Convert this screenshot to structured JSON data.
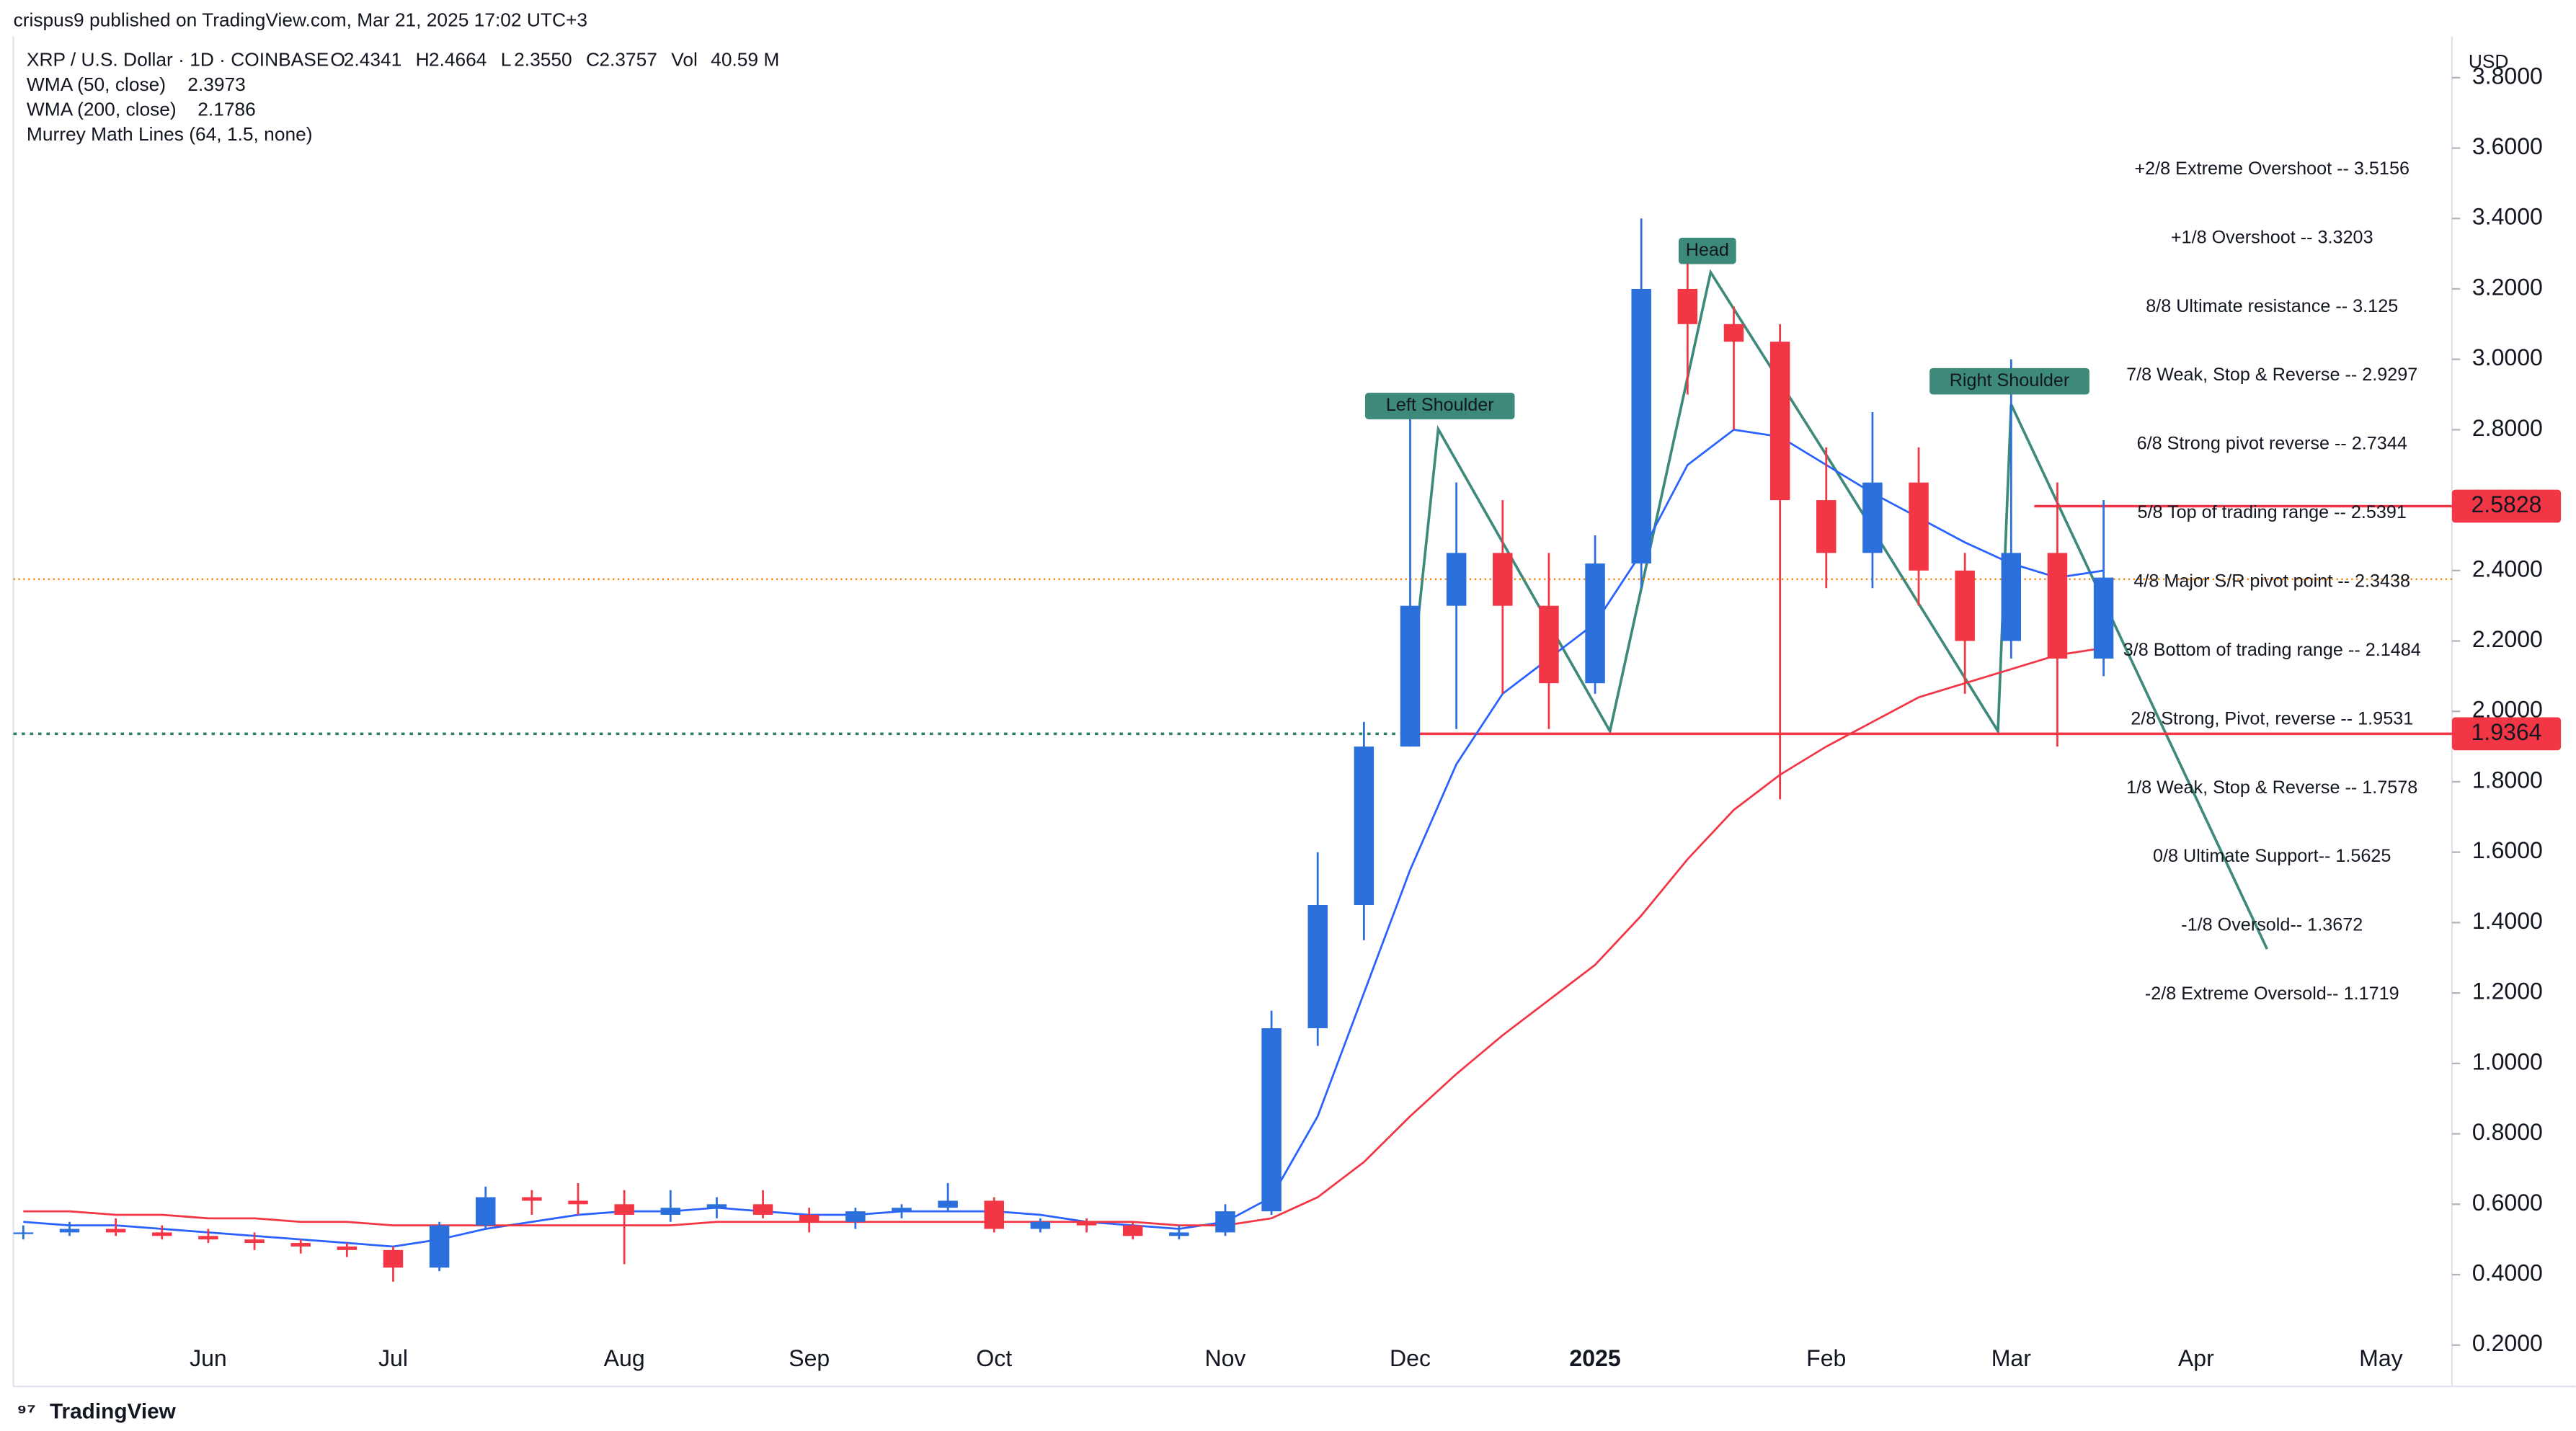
{
  "header": {
    "publisher": "crispus9 published on TradingView.com, Mar 21, 2025 17:02 UTC+3",
    "symbol": "XRP / U.S. Dollar · 1D · COINBASE",
    "ohlc": [
      {
        "key": "O",
        "value": "2.4341"
      },
      {
        "key": "H",
        "value": "2.4664"
      },
      {
        "key": "L",
        "value": "2.3550"
      },
      {
        "key": "C",
        "value": "2.3757"
      },
      {
        "key": "Vol",
        "value": "40.59 M"
      }
    ],
    "indicators": [
      {
        "name": "WMA (50, close)",
        "value": "2.3973",
        "color": "#2962ff"
      },
      {
        "name": "WMA (200, close)",
        "value": "2.1786",
        "color": "#f23645"
      },
      {
        "name": "Murrey Math Lines (64, 1.5, none)"
      }
    ]
  },
  "footer": {
    "brand": "TradingView"
  },
  "chart_data": {
    "type": "candlestick",
    "currency": "USD",
    "categories": [
      null,
      null,
      null,
      null,
      "Jun",
      null,
      null,
      null,
      "Jul",
      null,
      null,
      null,
      null,
      "Aug",
      null,
      null,
      null,
      "Sep",
      null,
      null,
      null,
      "Oct",
      null,
      null,
      null,
      null,
      "Nov",
      null,
      null,
      null,
      "Dec",
      null,
      null,
      null,
      "2025",
      null,
      null,
      null,
      null,
      "Feb",
      null,
      null,
      null,
      "Mar",
      null,
      null,
      null,
      "Apr",
      null,
      null,
      null,
      "May"
    ],
    "open": [
      0.52,
      0.52,
      0.53,
      0.52,
      0.51,
      0.5,
      0.49,
      0.48,
      0.47,
      0.42,
      0.54,
      0.62,
      0.61,
      0.6,
      0.57,
      0.59,
      0.6,
      0.57,
      0.55,
      0.58,
      0.59,
      0.61,
      0.53,
      0.55,
      0.54,
      0.51,
      0.52,
      0.58,
      1.1,
      1.45,
      1.9,
      2.3,
      2.45,
      2.3,
      2.08,
      2.42,
      3.2,
      3.1,
      3.05,
      2.6,
      2.45,
      2.65,
      2.4,
      2.2,
      2.45,
      2.15,
      null,
      null,
      null,
      null,
      null,
      null
    ],
    "high": [
      0.54,
      0.55,
      0.56,
      0.54,
      0.53,
      0.52,
      0.5,
      0.49,
      0.48,
      0.55,
      0.65,
      0.64,
      0.66,
      0.64,
      0.64,
      0.62,
      0.64,
      0.59,
      0.59,
      0.6,
      0.66,
      0.62,
      0.56,
      0.56,
      0.55,
      0.54,
      0.6,
      1.15,
      1.6,
      1.97,
      2.9,
      2.65,
      2.6,
      2.45,
      2.5,
      3.4,
      3.3,
      3.15,
      3.1,
      2.75,
      2.85,
      2.75,
      2.45,
      3.0,
      2.65,
      2.6,
      null,
      null,
      null,
      null,
      null,
      null
    ],
    "low": [
      0.5,
      0.51,
      0.51,
      0.5,
      0.49,
      0.47,
      0.46,
      0.45,
      0.38,
      0.41,
      0.53,
      0.57,
      0.57,
      0.43,
      0.55,
      0.56,
      0.56,
      0.52,
      0.53,
      0.56,
      0.58,
      0.52,
      0.52,
      0.52,
      0.5,
      0.5,
      0.51,
      0.57,
      1.05,
      1.35,
      1.9,
      1.95,
      2.05,
      1.95,
      2.05,
      2.35,
      2.9,
      2.8,
      1.75,
      2.35,
      2.35,
      2.3,
      2.05,
      2.15,
      1.9,
      2.1,
      null,
      null,
      null,
      null,
      null,
      null
    ],
    "close": [
      0.52,
      0.53,
      0.52,
      0.51,
      0.5,
      0.49,
      0.48,
      0.47,
      0.42,
      0.54,
      0.62,
      0.61,
      0.6,
      0.57,
      0.59,
      0.6,
      0.57,
      0.55,
      0.58,
      0.59,
      0.61,
      0.53,
      0.55,
      0.54,
      0.51,
      0.52,
      0.58,
      1.1,
      1.45,
      1.9,
      2.3,
      2.45,
      2.3,
      2.08,
      2.42,
      3.2,
      3.1,
      3.05,
      2.6,
      2.45,
      2.65,
      2.4,
      2.2,
      2.45,
      2.15,
      2.38,
      null,
      null,
      null,
      null,
      null,
      null
    ],
    "up_color": "#2a6fdb",
    "down_color": "#f23645",
    "series": [
      {
        "name": "WMA (50, close)",
        "color": "#2962ff",
        "values": [
          0.55,
          0.54,
          0.54,
          0.53,
          0.52,
          0.51,
          0.5,
          0.49,
          0.48,
          0.5,
          0.53,
          0.55,
          0.57,
          0.58,
          0.58,
          0.59,
          0.58,
          0.57,
          0.57,
          0.58,
          0.58,
          0.58,
          0.57,
          0.55,
          0.54,
          0.53,
          0.55,
          0.62,
          0.85,
          1.2,
          1.55,
          1.85,
          2.05,
          2.15,
          2.25,
          2.45,
          2.7,
          2.8,
          2.78,
          2.7,
          2.62,
          2.55,
          2.48,
          2.42,
          2.38,
          2.4,
          null,
          null,
          null,
          null,
          null,
          null
        ]
      },
      {
        "name": "WMA (200, close)",
        "color": "#f23645",
        "values": [
          0.58,
          0.58,
          0.57,
          0.57,
          0.56,
          0.56,
          0.55,
          0.55,
          0.54,
          0.54,
          0.54,
          0.54,
          0.54,
          0.54,
          0.54,
          0.55,
          0.55,
          0.55,
          0.55,
          0.55,
          0.55,
          0.55,
          0.55,
          0.55,
          0.55,
          0.54,
          0.54,
          0.56,
          0.62,
          0.72,
          0.85,
          0.97,
          1.08,
          1.18,
          1.28,
          1.42,
          1.58,
          1.72,
          1.82,
          1.9,
          1.97,
          2.04,
          2.08,
          2.12,
          2.16,
          2.18,
          null,
          null,
          null,
          null,
          null,
          null
        ]
      }
    ],
    "murrey": [
      {
        "label": "+2/8 Extreme Overshoot --  3.5156",
        "value": 3.5156,
        "color": "#f23645"
      },
      {
        "label": "+1/8 Overshoot --  3.3203",
        "value": 3.3203,
        "color": "#f23645"
      },
      {
        "label": "8/8 Ultimate resistance --  3.125",
        "value": 3.125,
        "color": "#00bcd4"
      },
      {
        "label": "7/8 Weak, Stop & Reverse --  2.9297",
        "value": 2.9297,
        "color": "#ff9800"
      },
      {
        "label": "6/8 Strong pivot reverse --  2.7344",
        "value": 2.7344,
        "color": "#e040fb"
      },
      {
        "label": "5/8 Top of trading range --  2.5391",
        "value": 2.5391,
        "color": "#4caf50"
      },
      {
        "label": "4/8 Major S/R pivot point --  2.3438",
        "value": 2.3438,
        "color": "#00bcd4"
      },
      {
        "label": "3/8 Bottom of trading range --  2.1484",
        "value": 2.1484,
        "color": "#4caf50"
      },
      {
        "label": "2/8 Strong, Pivot, reverse --  1.9531",
        "value": 1.9531,
        "color": "#e040fb"
      },
      {
        "label": "1/8 Weak, Stop & Reverse --  1.7578",
        "value": 1.7578,
        "color": "#ff9800"
      },
      {
        "label": "0/8 Ultimate Support--  1.5625",
        "value": 1.5625,
        "color": "#00bcd4"
      },
      {
        "label": "-1/8 Oversold--  1.3672",
        "value": 1.3672,
        "color": "#4caf50"
      },
      {
        "label": "-2/8 Extreme Oversold--  1.1719",
        "value": 1.1719,
        "color": "#4caf50"
      }
    ],
    "price_markers": [
      {
        "value": 2.5828,
        "label": "2.5828"
      },
      {
        "value": 1.9364,
        "label": "1.9364"
      }
    ],
    "current_price": 2.3757,
    "annotations": [
      "Left Shoulder",
      "Head",
      "Right Shoulder"
    ],
    "ylim": [
      0.0825,
      3.9175
    ],
    "yticks": [
      {
        "value": 0.2,
        "label": "0.2000"
      },
      {
        "value": 0.4,
        "label": "0.4000"
      },
      {
        "value": 0.6,
        "label": "0.6000"
      },
      {
        "value": 0.8,
        "label": "0.8000"
      },
      {
        "value": 1.0,
        "label": "1.0000"
      },
      {
        "value": 1.2,
        "label": "1.2000"
      },
      {
        "value": 1.4,
        "label": "1.4000"
      },
      {
        "value": 1.6,
        "label": "1.6000"
      },
      {
        "value": 1.8,
        "label": "1.8000"
      },
      {
        "value": 2.0,
        "label": "2.0000"
      },
      {
        "value": 2.2,
        "label": "2.2000"
      },
      {
        "value": 2.4,
        "label": "2.4000"
      },
      {
        "value": 2.6,
        "label": "2.6000"
      },
      {
        "value": 2.8,
        "label": "2.8000"
      },
      {
        "value": 3.0,
        "label": "3.0000"
      },
      {
        "value": 3.2,
        "label": "3.2000"
      },
      {
        "value": 3.4,
        "label": "3.4000"
      },
      {
        "value": 3.6,
        "label": "3.6000"
      },
      {
        "value": 3.8,
        "label": "3.8000"
      }
    ]
  }
}
